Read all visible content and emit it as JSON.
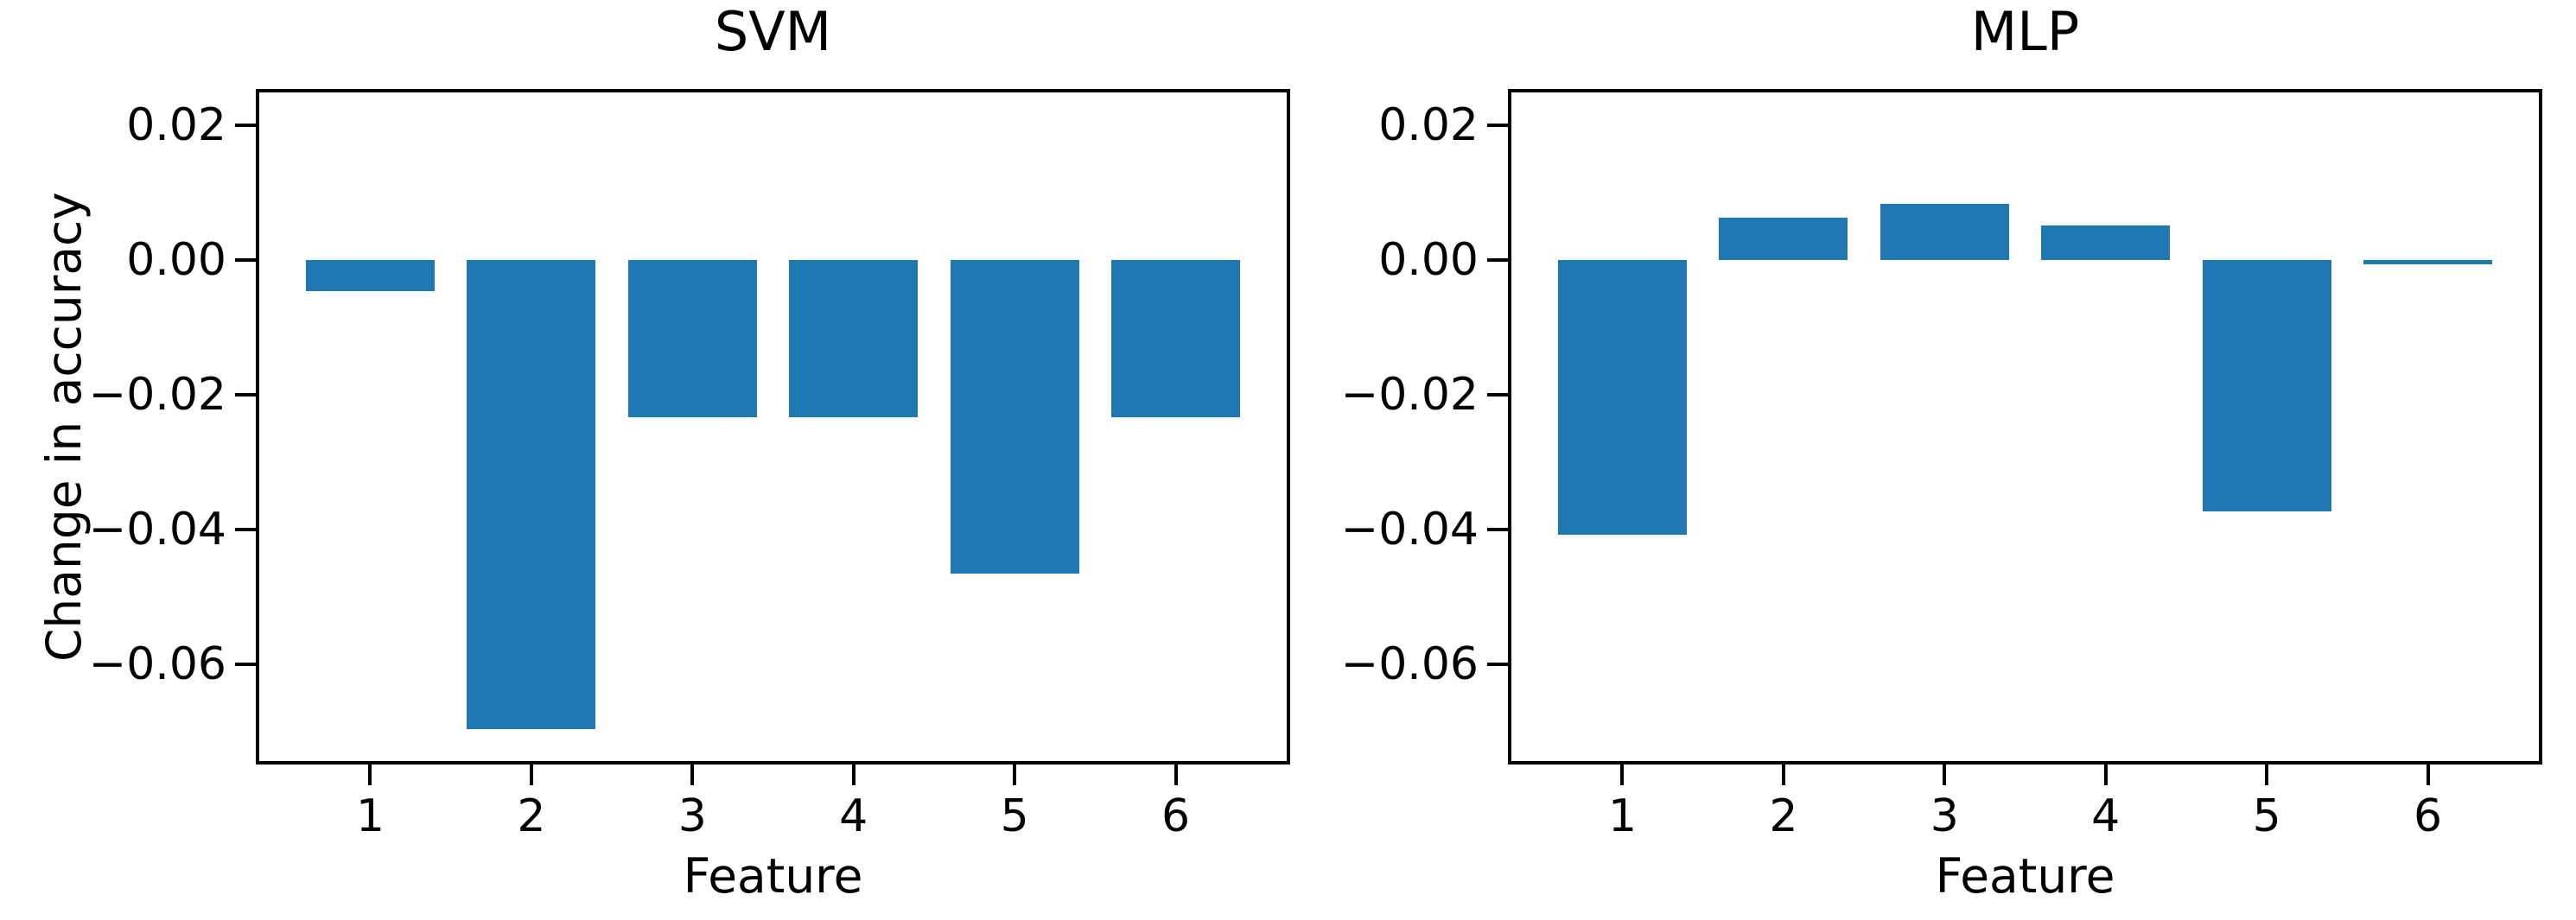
{
  "figure": {
    "background_color": "#ffffff",
    "text_color": "#000000",
    "spine_color": "#000000"
  },
  "chart_data": [
    {
      "type": "bar",
      "title": "SVM",
      "xlabel": "Feature",
      "ylabel": "Change in accuracy",
      "categories": [
        "1",
        "2",
        "3",
        "4",
        "5",
        "6"
      ],
      "values": [
        -0.0046,
        -0.0696,
        -0.0233,
        -0.0233,
        -0.0465,
        -0.0233
      ],
      "bar_color": "#1f77b4",
      "ylim": [
        -0.0746,
        0.0251
      ],
      "xlim_units": [
        0.3,
        6.7
      ],
      "bar_width_units": 0.8,
      "yticks": [
        {
          "value": 0.02,
          "label": "0.02"
        },
        {
          "value": 0.0,
          "label": "0.00"
        },
        {
          "value": -0.02,
          "label": "−0.02"
        },
        {
          "value": -0.04,
          "label": "−0.04"
        },
        {
          "value": -0.06,
          "label": "−0.06"
        }
      ],
      "grid": false,
      "legend": null
    },
    {
      "type": "bar",
      "title": "MLP",
      "xlabel": "Feature",
      "ylabel": "",
      "categories": [
        "1",
        "2",
        "3",
        "4",
        "5",
        "6"
      ],
      "values": [
        -0.0408,
        0.0062,
        0.0083,
        0.0051,
        -0.0373,
        -0.0006
      ],
      "bar_color": "#1f77b4",
      "ylim": [
        -0.0746,
        0.0251
      ],
      "xlim_units": [
        0.3,
        6.7
      ],
      "bar_width_units": 0.8,
      "yticks": [
        {
          "value": 0.02,
          "label": "0.02"
        },
        {
          "value": 0.0,
          "label": "0.00"
        },
        {
          "value": -0.02,
          "label": "−0.02"
        },
        {
          "value": -0.04,
          "label": "−0.04"
        },
        {
          "value": -0.06,
          "label": "−0.06"
        }
      ],
      "grid": false,
      "legend": null
    }
  ]
}
